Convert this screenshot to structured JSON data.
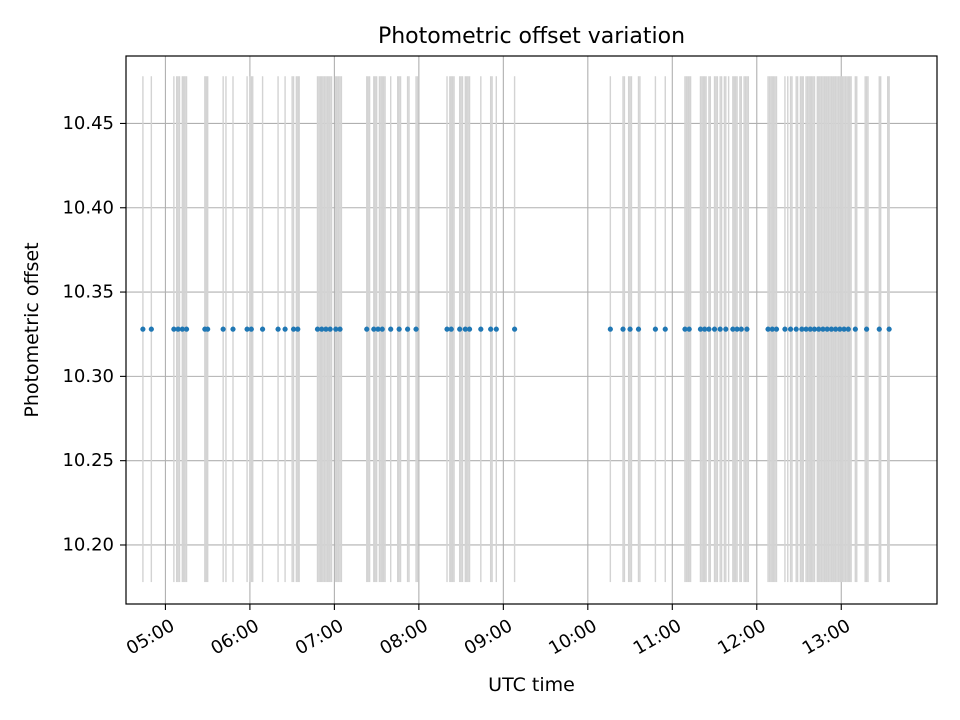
{
  "chart_data": {
    "type": "scatter",
    "title": "Photometric offset variation",
    "xlabel": "UTC time",
    "ylabel": "Photometric offset",
    "xlim": [
      "04:32",
      "14:08"
    ],
    "ylim": [
      10.165,
      10.49
    ],
    "grid": true,
    "x_ticks": [
      "05:00",
      "06:00",
      "07:00",
      "08:00",
      "09:00",
      "10:00",
      "11:00",
      "12:00",
      "13:00"
    ],
    "y_ticks": [
      "10.20",
      "10.25",
      "10.30",
      "10.35",
      "10.40",
      "10.45"
    ],
    "bands": {
      "color": "#d3d3d3",
      "y_range": [
        10.178,
        10.478
      ],
      "times": [
        "04:44",
        "04:50",
        "05:06",
        "05:08",
        "05:09",
        "05:10",
        "05:12",
        "05:13",
        "05:14",
        "05:15",
        "05:28",
        "05:29",
        "05:30",
        "05:41",
        "05:43",
        "05:48",
        "05:58",
        "06:00",
        "06:01",
        "06:02",
        "06:09",
        "06:20",
        "06:25",
        "06:30",
        "06:31",
        "06:33",
        "06:34",
        "06:35",
        "06:48",
        "06:49",
        "06:50",
        "06:51",
        "06:52",
        "06:53",
        "06:54",
        "06:55",
        "06:56",
        "06:57",
        "06:58",
        "07:01",
        "07:02",
        "07:03",
        "07:04",
        "07:05",
        "07:23",
        "07:24",
        "07:25",
        "07:28",
        "07:29",
        "07:30",
        "07:32",
        "07:33",
        "07:34",
        "07:35",
        "07:36",
        "07:40",
        "07:45",
        "07:46",
        "07:47",
        "07:52",
        "07:53",
        "07:58",
        "07:59",
        "08:20",
        "08:22",
        "08:23",
        "08:24",
        "08:25",
        "08:29",
        "08:30",
        "08:31",
        "08:33",
        "08:34",
        "08:35",
        "08:36",
        "08:44",
        "08:51",
        "08:52",
        "08:55",
        "09:08",
        "10:16",
        "10:25",
        "10:26",
        "10:29",
        "10:30",
        "10:31",
        "10:36",
        "10:37",
        "10:48",
        "10:55",
        "11:09",
        "11:10",
        "11:11",
        "11:12",
        "11:13",
        "11:20",
        "11:21",
        "11:22",
        "11:23",
        "11:24",
        "11:26",
        "11:27",
        "11:30",
        "11:31",
        "11:32",
        "11:34",
        "11:35",
        "11:37",
        "11:38",
        "11:40",
        "11:43",
        "11:44",
        "11:45",
        "11:46",
        "11:48",
        "11:49",
        "11:51",
        "11:52",
        "11:53",
        "11:54",
        "12:08",
        "12:09",
        "12:10",
        "12:11",
        "12:12",
        "12:13",
        "12:14",
        "12:20",
        "12:22",
        "12:24",
        "12:25",
        "12:28",
        "12:29",
        "12:31",
        "12:32",
        "12:33",
        "12:35",
        "12:36",
        "12:37",
        "12:38",
        "12:39",
        "12:40",
        "12:41",
        "12:43",
        "12:44",
        "12:45",
        "12:46",
        "12:47",
        "12:48",
        "12:49",
        "12:50",
        "12:51",
        "12:52",
        "12:53",
        "12:54",
        "12:55",
        "12:56",
        "12:57",
        "12:58",
        "12:59",
        "13:00",
        "13:01",
        "13:02",
        "13:03",
        "13:04",
        "13:05",
        "13:06",
        "13:07",
        "13:10",
        "13:11",
        "13:17",
        "13:18",
        "13:19",
        "13:27",
        "13:28",
        "13:33",
        "13:34"
      ]
    },
    "series": [
      {
        "color": "#1f77b4",
        "value": 10.328,
        "times": [
          "04:44",
          "04:50",
          "05:06",
          "05:09",
          "05:12",
          "05:15",
          "05:28",
          "05:30",
          "05:41",
          "05:48",
          "05:58",
          "06:01",
          "06:09",
          "06:20",
          "06:25",
          "06:31",
          "06:34",
          "06:48",
          "06:51",
          "06:54",
          "06:57",
          "07:01",
          "07:04",
          "07:23",
          "07:28",
          "07:31",
          "07:34",
          "07:40",
          "07:46",
          "07:52",
          "07:58",
          "08:20",
          "08:23",
          "08:29",
          "08:33",
          "08:36",
          "08:44",
          "08:51",
          "08:55",
          "09:08",
          "10:16",
          "10:25",
          "10:30",
          "10:36",
          "10:48",
          "10:55",
          "11:09",
          "11:12",
          "11:20",
          "11:23",
          "11:26",
          "11:30",
          "11:34",
          "11:38",
          "11:43",
          "11:46",
          "11:49",
          "11:53",
          "12:08",
          "12:11",
          "12:14",
          "12:20",
          "12:24",
          "12:28",
          "12:32",
          "12:35",
          "12:38",
          "12:41",
          "12:44",
          "12:47",
          "12:50",
          "12:53",
          "12:56",
          "12:59",
          "13:02",
          "13:05",
          "13:10",
          "13:18",
          "13:27",
          "13:34"
        ]
      }
    ]
  }
}
